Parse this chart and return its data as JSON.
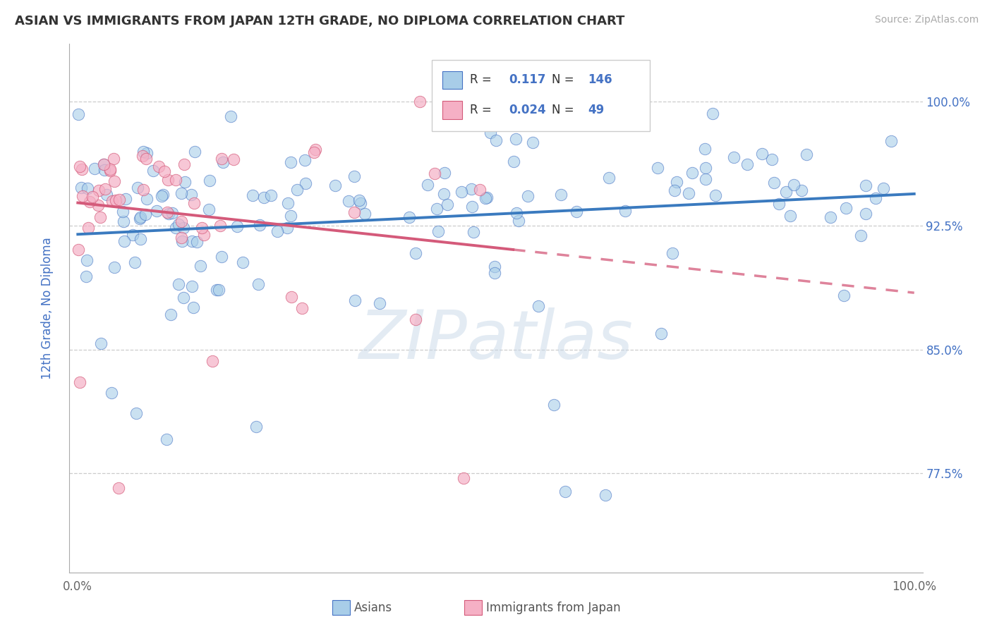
{
  "title": "ASIAN VS IMMIGRANTS FROM JAPAN 12TH GRADE, NO DIPLOMA CORRELATION CHART",
  "source": "Source: ZipAtlas.com",
  "ylabel": "12th Grade, No Diploma",
  "ytick_labels": [
    "77.5%",
    "85.0%",
    "92.5%",
    "100.0%"
  ],
  "ytick_values": [
    0.775,
    0.85,
    0.925,
    1.0
  ],
  "xlim": [
    -0.01,
    1.01
  ],
  "ylim": [
    0.715,
    1.035
  ],
  "legend_r_asian": "0.117",
  "legend_n_asian": "146",
  "legend_r_japan": "0.024",
  "legend_n_japan": "49",
  "blue_color": "#a8cde8",
  "blue_edge": "#4472c4",
  "pink_color": "#f5b0c5",
  "pink_edge": "#d45a7a",
  "trendline_blue": "#3a7abf",
  "trendline_pink": "#d45a7a",
  "n_asian": 146,
  "n_japan": 49
}
